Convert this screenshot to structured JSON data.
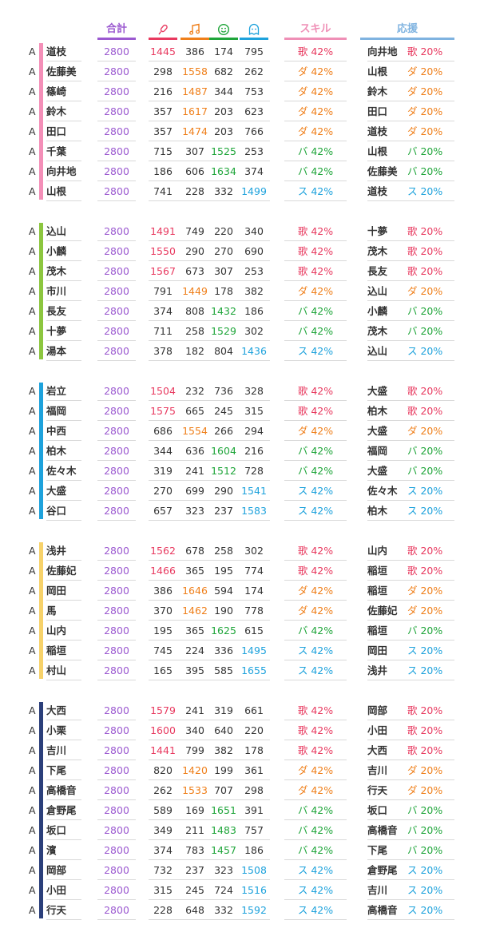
{
  "headers": {
    "total": "合計",
    "skill": "スキル",
    "support": "応援",
    "stat_icons": [
      "mic-icon",
      "music-note-icon",
      "smiley-icon",
      "ghost-icon"
    ]
  },
  "colors": {
    "total": "#9b59d0",
    "vocal": "#e8395f",
    "dance": "#ef7f1a",
    "visual": "#1fa53a",
    "stamina": "#1ea2dc",
    "skill_header": "#ef8fb6",
    "support_header": "#7fb3e0"
  },
  "groups": [
    {
      "color": "#f48fb8",
      "rows": [
        {
          "rank": "A",
          "name": "道枝",
          "total": "2800",
          "v": [
            "1445",
            "386",
            "174",
            "795"
          ],
          "hi": 0,
          "skill": "歌 42%",
          "sk": "voc",
          "supName": "向井地",
          "sup": "歌 20%",
          "sp": "voc"
        },
        {
          "rank": "A",
          "name": "佐藤美",
          "total": "2800",
          "v": [
            "298",
            "1558",
            "682",
            "262"
          ],
          "hi": 1,
          "skill": "ダ 42%",
          "sk": "dan",
          "supName": "山根",
          "sup": "ダ 20%",
          "sp": "dan"
        },
        {
          "rank": "A",
          "name": "篠崎",
          "total": "2800",
          "v": [
            "216",
            "1487",
            "344",
            "753"
          ],
          "hi": 1,
          "skill": "ダ 42%",
          "sk": "dan",
          "supName": "鈴木",
          "sup": "ダ 20%",
          "sp": "dan"
        },
        {
          "rank": "A",
          "name": "鈴木",
          "total": "2800",
          "v": [
            "357",
            "1617",
            "203",
            "623"
          ],
          "hi": 1,
          "skill": "ダ 42%",
          "sk": "dan",
          "supName": "田口",
          "sup": "ダ 20%",
          "sp": "dan"
        },
        {
          "rank": "A",
          "name": "田口",
          "total": "2800",
          "v": [
            "357",
            "1474",
            "203",
            "766"
          ],
          "hi": 1,
          "skill": "ダ 42%",
          "sk": "dan",
          "supName": "道枝",
          "sup": "ダ 20%",
          "sp": "dan"
        },
        {
          "rank": "A",
          "name": "千葉",
          "total": "2800",
          "v": [
            "715",
            "307",
            "1525",
            "253"
          ],
          "hi": 2,
          "skill": "バ 42%",
          "sk": "vis",
          "supName": "山根",
          "sup": "バ 20%",
          "sp": "vis"
        },
        {
          "rank": "A",
          "name": "向井地",
          "total": "2800",
          "v": [
            "186",
            "606",
            "1634",
            "374"
          ],
          "hi": 2,
          "skill": "バ 42%",
          "sk": "vis",
          "supName": "佐藤美",
          "sup": "バ 20%",
          "sp": "vis"
        },
        {
          "rank": "A",
          "name": "山根",
          "total": "2800",
          "v": [
            "741",
            "228",
            "332",
            "1499"
          ],
          "hi": 3,
          "skill": "ス 42%",
          "sk": "sta",
          "supName": "道枝",
          "sup": "ス 20%",
          "sp": "sta"
        }
      ]
    },
    {
      "color": "#8cc63f",
      "rows": [
        {
          "rank": "A",
          "name": "込山",
          "total": "2800",
          "v": [
            "1491",
            "749",
            "220",
            "340"
          ],
          "hi": 0,
          "skill": "歌 42%",
          "sk": "voc",
          "supName": "十夢",
          "sup": "歌 20%",
          "sp": "voc"
        },
        {
          "rank": "A",
          "name": "小麟",
          "total": "2800",
          "v": [
            "1550",
            "290",
            "270",
            "690"
          ],
          "hi": 0,
          "skill": "歌 42%",
          "sk": "voc",
          "supName": "茂木",
          "sup": "歌 20%",
          "sp": "voc"
        },
        {
          "rank": "A",
          "name": "茂木",
          "total": "2800",
          "v": [
            "1567",
            "673",
            "307",
            "253"
          ],
          "hi": 0,
          "skill": "歌 42%",
          "sk": "voc",
          "supName": "長友",
          "sup": "歌 20%",
          "sp": "voc"
        },
        {
          "rank": "A",
          "name": "市川",
          "total": "2800",
          "v": [
            "791",
            "1449",
            "178",
            "382"
          ],
          "hi": 1,
          "skill": "ダ 42%",
          "sk": "dan",
          "supName": "込山",
          "sup": "ダ 20%",
          "sp": "dan"
        },
        {
          "rank": "A",
          "name": "長友",
          "total": "2800",
          "v": [
            "374",
            "808",
            "1432",
            "186"
          ],
          "hi": 2,
          "skill": "バ 42%",
          "sk": "vis",
          "supName": "小麟",
          "sup": "バ 20%",
          "sp": "vis"
        },
        {
          "rank": "A",
          "name": "十夢",
          "total": "2800",
          "v": [
            "711",
            "258",
            "1529",
            "302"
          ],
          "hi": 2,
          "skill": "バ 42%",
          "sk": "vis",
          "supName": "茂木",
          "sup": "バ 20%",
          "sp": "vis"
        },
        {
          "rank": "A",
          "name": "湯本",
          "total": "2800",
          "v": [
            "378",
            "182",
            "804",
            "1436"
          ],
          "hi": 3,
          "skill": "ス 42%",
          "sk": "sta",
          "supName": "込山",
          "sup": "ス 20%",
          "sp": "sta"
        }
      ]
    },
    {
      "color": "#1ea2dc",
      "rows": [
        {
          "rank": "A",
          "name": "岩立",
          "total": "2800",
          "v": [
            "1504",
            "232",
            "736",
            "328"
          ],
          "hi": 0,
          "skill": "歌 42%",
          "sk": "voc",
          "supName": "大盛",
          "sup": "歌 20%",
          "sp": "voc"
        },
        {
          "rank": "A",
          "name": "福岡",
          "total": "2800",
          "v": [
            "1575",
            "665",
            "245",
            "315"
          ],
          "hi": 0,
          "skill": "歌 42%",
          "sk": "voc",
          "supName": "柏木",
          "sup": "歌 20%",
          "sp": "voc"
        },
        {
          "rank": "A",
          "name": "中西",
          "total": "2800",
          "v": [
            "686",
            "1554",
            "266",
            "294"
          ],
          "hi": 1,
          "skill": "ダ 42%",
          "sk": "dan",
          "supName": "大盛",
          "sup": "ダ 20%",
          "sp": "dan"
        },
        {
          "rank": "A",
          "name": "柏木",
          "total": "2800",
          "v": [
            "344",
            "636",
            "1604",
            "216"
          ],
          "hi": 2,
          "skill": "バ 42%",
          "sk": "vis",
          "supName": "福岡",
          "sup": "バ 20%",
          "sp": "vis"
        },
        {
          "rank": "A",
          "name": "佐々木",
          "total": "2800",
          "v": [
            "319",
            "241",
            "1512",
            "728"
          ],
          "hi": 2,
          "skill": "バ 42%",
          "sk": "vis",
          "supName": "大盛",
          "sup": "バ 20%",
          "sp": "vis"
        },
        {
          "rank": "A",
          "name": "大盛",
          "total": "2800",
          "v": [
            "270",
            "699",
            "290",
            "1541"
          ],
          "hi": 3,
          "skill": "ス 42%",
          "sk": "sta",
          "supName": "佐々木",
          "sup": "ス 20%",
          "sp": "sta"
        },
        {
          "rank": "A",
          "name": "谷口",
          "total": "2800",
          "v": [
            "657",
            "323",
            "237",
            "1583"
          ],
          "hi": 3,
          "skill": "ス 42%",
          "sk": "sta",
          "supName": "柏木",
          "sup": "ス 20%",
          "sp": "sta"
        }
      ]
    },
    {
      "color": "#f7d26a",
      "rows": [
        {
          "rank": "A",
          "name": "浅井",
          "total": "2800",
          "v": [
            "1562",
            "678",
            "258",
            "302"
          ],
          "hi": 0,
          "skill": "歌 42%",
          "sk": "voc",
          "supName": "山内",
          "sup": "歌 20%",
          "sp": "voc"
        },
        {
          "rank": "A",
          "name": "佐藤妃",
          "total": "2800",
          "v": [
            "1466",
            "365",
            "195",
            "774"
          ],
          "hi": 0,
          "skill": "歌 42%",
          "sk": "voc",
          "supName": "稲垣",
          "sup": "歌 20%",
          "sp": "voc"
        },
        {
          "rank": "A",
          "name": "岡田",
          "total": "2800",
          "v": [
            "386",
            "1646",
            "594",
            "174"
          ],
          "hi": 1,
          "skill": "ダ 42%",
          "sk": "dan",
          "supName": "稲垣",
          "sup": "ダ 20%",
          "sp": "dan"
        },
        {
          "rank": "A",
          "name": "馬",
          "total": "2800",
          "v": [
            "370",
            "1462",
            "190",
            "778"
          ],
          "hi": 1,
          "skill": "ダ 42%",
          "sk": "dan",
          "supName": "佐藤妃",
          "sup": "ダ 20%",
          "sp": "dan"
        },
        {
          "rank": "A",
          "name": "山内",
          "total": "2800",
          "v": [
            "195",
            "365",
            "1625",
            "615"
          ],
          "hi": 2,
          "skill": "バ 42%",
          "sk": "vis",
          "supName": "稲垣",
          "sup": "バ 20%",
          "sp": "vis"
        },
        {
          "rank": "A",
          "name": "稲垣",
          "total": "2800",
          "v": [
            "745",
            "224",
            "336",
            "1495"
          ],
          "hi": 3,
          "skill": "ス 42%",
          "sk": "sta",
          "supName": "岡田",
          "sup": "ス 20%",
          "sp": "sta"
        },
        {
          "rank": "A",
          "name": "村山",
          "total": "2800",
          "v": [
            "165",
            "395",
            "585",
            "1655"
          ],
          "hi": 3,
          "skill": "ス 42%",
          "sk": "sta",
          "supName": "浅井",
          "sup": "ス 20%",
          "sp": "sta"
        }
      ]
    },
    {
      "color": "#2b3f7a",
      "rows": [
        {
          "rank": "A",
          "name": "大西",
          "total": "2800",
          "v": [
            "1579",
            "241",
            "319",
            "661"
          ],
          "hi": 0,
          "skill": "歌 42%",
          "sk": "voc",
          "supName": "岡部",
          "sup": "歌 20%",
          "sp": "voc"
        },
        {
          "rank": "A",
          "name": "小栗",
          "total": "2800",
          "v": [
            "1600",
            "340",
            "640",
            "220"
          ],
          "hi": 0,
          "skill": "歌 42%",
          "sk": "voc",
          "supName": "小田",
          "sup": "歌 20%",
          "sp": "voc"
        },
        {
          "rank": "A",
          "name": "吉川",
          "total": "2800",
          "v": [
            "1441",
            "799",
            "382",
            "178"
          ],
          "hi": 0,
          "skill": "歌 42%",
          "sk": "voc",
          "supName": "大西",
          "sup": "歌 20%",
          "sp": "voc"
        },
        {
          "rank": "A",
          "name": "下尾",
          "total": "2800",
          "v": [
            "820",
            "1420",
            "199",
            "361"
          ],
          "hi": 1,
          "skill": "ダ 42%",
          "sk": "dan",
          "supName": "吉川",
          "sup": "ダ 20%",
          "sp": "dan"
        },
        {
          "rank": "A",
          "name": "高橋音",
          "total": "2800",
          "v": [
            "262",
            "1533",
            "707",
            "298"
          ],
          "hi": 1,
          "skill": "ダ 42%",
          "sk": "dan",
          "supName": "行天",
          "sup": "ダ 20%",
          "sp": "dan"
        },
        {
          "rank": "A",
          "name": "倉野尾",
          "total": "2800",
          "v": [
            "589",
            "169",
            "1651",
            "391"
          ],
          "hi": 2,
          "skill": "バ 42%",
          "sk": "vis",
          "supName": "坂口",
          "sup": "バ 20%",
          "sp": "vis"
        },
        {
          "rank": "A",
          "name": "坂口",
          "total": "2800",
          "v": [
            "349",
            "211",
            "1483",
            "757"
          ],
          "hi": 2,
          "skill": "バ 42%",
          "sk": "vis",
          "supName": "高橋音",
          "sup": "バ 20%",
          "sp": "vis"
        },
        {
          "rank": "A",
          "name": "濱",
          "total": "2800",
          "v": [
            "374",
            "783",
            "1457",
            "186"
          ],
          "hi": 2,
          "skill": "バ 42%",
          "sk": "vis",
          "supName": "下尾",
          "sup": "バ 20%",
          "sp": "vis"
        },
        {
          "rank": "A",
          "name": "岡部",
          "total": "2800",
          "v": [
            "732",
            "237",
            "323",
            "1508"
          ],
          "hi": 3,
          "skill": "ス 42%",
          "sk": "sta",
          "supName": "倉野尾",
          "sup": "ス 20%",
          "sp": "sta"
        },
        {
          "rank": "A",
          "name": "小田",
          "total": "2800",
          "v": [
            "315",
            "245",
            "724",
            "1516"
          ],
          "hi": 3,
          "skill": "ス 42%",
          "sk": "sta",
          "supName": "吉川",
          "sup": "ス 20%",
          "sp": "sta"
        },
        {
          "rank": "A",
          "name": "行天",
          "total": "2800",
          "v": [
            "228",
            "648",
            "332",
            "1592"
          ],
          "hi": 3,
          "skill": "ス 42%",
          "sk": "sta",
          "supName": "高橋音",
          "sup": "ス 20%",
          "sp": "sta"
        }
      ]
    }
  ]
}
